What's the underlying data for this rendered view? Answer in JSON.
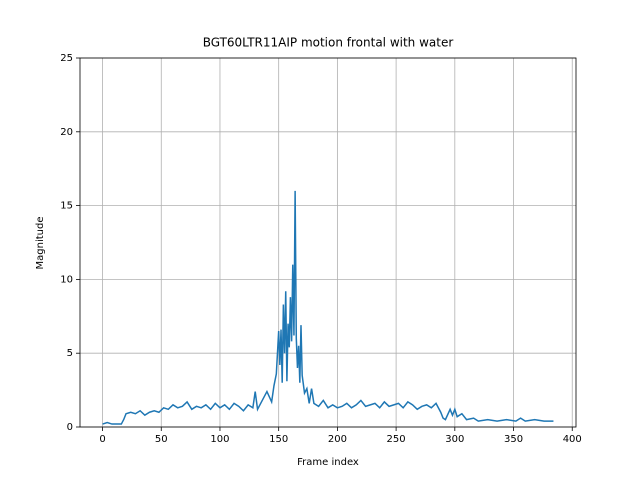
{
  "chart_data": {
    "type": "line",
    "title": "BGT60LTR11AIP motion frontal with water",
    "x_label": "Frame index",
    "y_label": "Magnitude",
    "x": [
      0,
      4,
      8,
      12,
      16,
      18,
      20,
      24,
      28,
      32,
      36,
      40,
      44,
      48,
      52,
      56,
      60,
      64,
      68,
      72,
      76,
      80,
      84,
      88,
      92,
      96,
      100,
      104,
      108,
      112,
      116,
      120,
      124,
      128,
      130,
      132,
      136,
      140,
      144,
      146,
      148,
      150,
      151,
      152,
      153,
      154,
      155,
      156,
      157,
      158,
      159,
      160,
      161,
      162,
      163,
      164,
      165,
      166,
      167,
      168,
      169,
      170,
      172,
      174,
      176,
      178,
      180,
      184,
      188,
      192,
      196,
      200,
      204,
      208,
      212,
      216,
      220,
      224,
      228,
      232,
      236,
      240,
      244,
      248,
      252,
      256,
      260,
      264,
      268,
      272,
      276,
      280,
      284,
      288,
      290,
      292,
      296,
      298,
      300,
      302,
      306,
      310,
      316,
      320,
      328,
      336,
      344,
      352,
      356,
      360,
      368,
      376,
      384
    ],
    "series": [
      {
        "color": "#1f77b4",
        "values": [
          0.2,
          0.3,
          0.2,
          0.2,
          0.2,
          0.5,
          0.9,
          1.0,
          0.9,
          1.1,
          0.8,
          1.0,
          1.1,
          1.0,
          1.3,
          1.2,
          1.5,
          1.3,
          1.4,
          1.7,
          1.2,
          1.4,
          1.3,
          1.5,
          1.2,
          1.6,
          1.3,
          1.5,
          1.2,
          1.6,
          1.4,
          1.1,
          1.5,
          1.3,
          2.4,
          1.2,
          1.8,
          2.4,
          1.7,
          2.8,
          3.6,
          6.5,
          4.2,
          6.6,
          3.0,
          8.3,
          5.0,
          9.2,
          3.1,
          7.0,
          5.4,
          8.8,
          5.8,
          11.0,
          6.2,
          16.0,
          6.0,
          4.0,
          5.5,
          3.0,
          6.9,
          3.5,
          2.3,
          2.6,
          1.6,
          2.6,
          1.6,
          1.4,
          1.8,
          1.3,
          1.5,
          1.3,
          1.4,
          1.6,
          1.3,
          1.5,
          1.8,
          1.4,
          1.5,
          1.6,
          1.3,
          1.7,
          1.4,
          1.5,
          1.6,
          1.3,
          1.7,
          1.5,
          1.2,
          1.4,
          1.5,
          1.3,
          1.6,
          1.0,
          0.6,
          0.5,
          1.2,
          0.8,
          1.2,
          0.7,
          0.9,
          0.5,
          0.6,
          0.4,
          0.5,
          0.4,
          0.5,
          0.4,
          0.6,
          0.4,
          0.5,
          0.4,
          0.4
        ]
      }
    ],
    "xlim": [
      -19.2,
      403.2
    ],
    "xticks": [
      0,
      50,
      100,
      150,
      200,
      250,
      300,
      350,
      400
    ],
    "ylim": [
      0,
      25
    ],
    "yticks": [
      0,
      5,
      10,
      15,
      20,
      25
    ],
    "grid": true
  }
}
